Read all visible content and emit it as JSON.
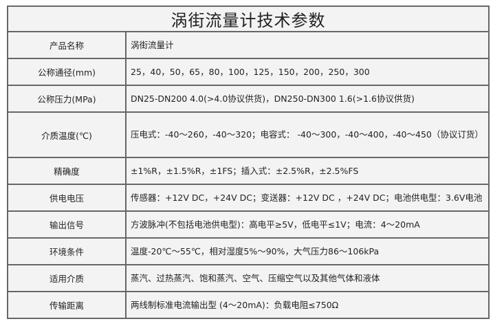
{
  "table": {
    "title": "涡街流量计技术参数",
    "rows": [
      [
        "产品名称",
        "涡街流量计"
      ],
      [
        "公称通径(mm)",
        "25，40，50，65，80，100，125，150，200，250，300"
      ],
      [
        "公称压力(MPa)",
        "DN25-DN200 4.0(>4.0协议供货)，DN250-DN300 1.6(>1.6协议供货)"
      ],
      [
        "介质温度(℃)",
        "压电式：-40～260，-40～320；电容式： -40～300，-40～400，-40～450（协议订货）"
      ],
      [
        "精确度",
        "±1%R，±1.5%R，±1FS；插入式：±2.5%R，±2.5%FS"
      ],
      [
        "供电电压",
        "传感器：+12V DC，+24V DC；变送器：+12V DC ，+24V DC；电池供电型：3.6V电池"
      ],
      [
        "输出信号",
        "方波脉冲(不包括电池供电型)：高电平≥5V，低电平≤1V；电流：4～20mA"
      ],
      [
        "环境条件",
        "温度-20℃～55℃，相对湿度5%～90%，大气压力86～106kPa"
      ],
      [
        "适用介质",
        "蒸汽、过热蒸汽、饱和蒸汽、空气、压缩空气以及其他气体和液体"
      ],
      [
        "传输距离",
        "两线制标准电流输出型 (4～20mA)：负载电阻≤750Ω"
      ]
    ]
  }
}
